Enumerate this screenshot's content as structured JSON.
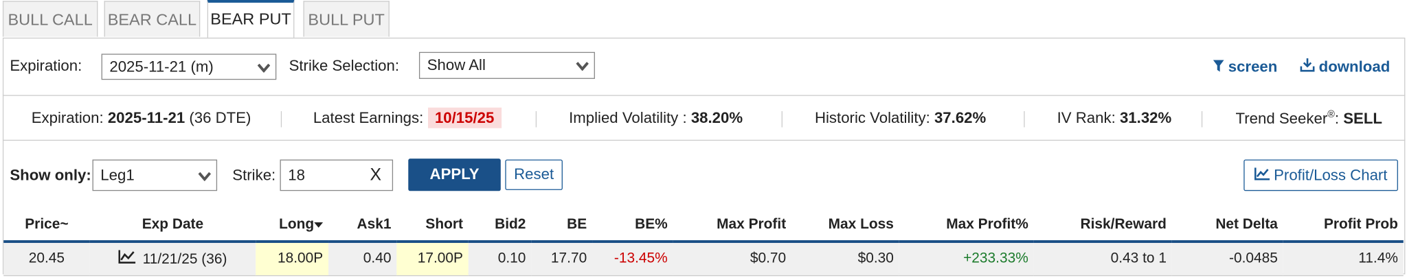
{
  "tabs": [
    "BULL CALL",
    "BEAR CALL",
    "BEAR PUT",
    "BULL PUT"
  ],
  "active_tab": "BEAR PUT",
  "filters": {
    "expiration_label": "Expiration:",
    "expiration_value": "2025-11-21 (m)",
    "strike_label": "Strike Selection:",
    "strike_value": "Show All",
    "screen": "screen",
    "download": "download"
  },
  "info": [
    {
      "label": "Expiration:",
      "value": "2025-11-21",
      "note": "(36 DTE)"
    },
    {
      "label": "Latest Earnings:",
      "value": "10/15/25"
    },
    {
      "label": "Implied Volatility :",
      "value": "38.20%"
    },
    {
      "label": "Historic Volatility:",
      "value": "37.62%"
    },
    {
      "label": "IV Rank:",
      "value": "31.32%"
    },
    {
      "label": "Trend Seeker",
      "mark": "®",
      "suffix": ":",
      "value": "SELL"
    }
  ],
  "controls": {
    "show_only_label": "Show only:",
    "show_only_value": "Leg1",
    "strike_label": "Strike:",
    "strike_value": "18",
    "clear": "X",
    "apply": "APPLY",
    "reset": "Reset",
    "chart": "Profit/Loss Chart"
  },
  "table": {
    "columns": [
      "Price~",
      "Exp Date",
      "Long",
      "Ask1",
      "Short",
      "Bid2",
      "BE",
      "BE%",
      "Max Profit",
      "Max Loss",
      "Max Profit%",
      "Risk/Reward",
      "Net Delta",
      "Profit Prob"
    ],
    "rows": [
      [
        "20.45",
        "11/21/25 (36)",
        "18.00P",
        "0.40",
        "17.00P",
        "0.10",
        "17.70",
        "-13.45%",
        "$0.70",
        "$0.30",
        "+233.33%",
        "0.43 to 1",
        "-0.0485",
        "11.4%"
      ]
    ]
  }
}
